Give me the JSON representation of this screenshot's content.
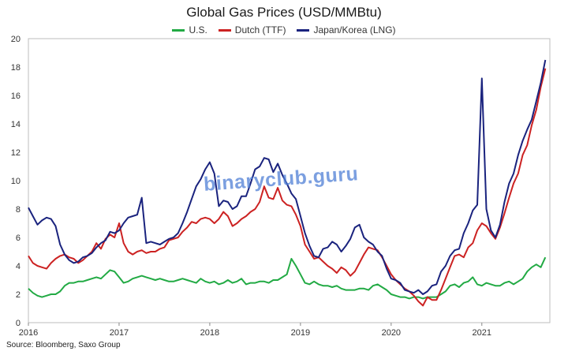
{
  "chart_data": {
    "type": "line",
    "title": "Global Gas Prices (USD/MMBtu)",
    "xlabel": "",
    "ylabel": "",
    "xlim": [
      2016,
      2021.75
    ],
    "ylim": [
      0,
      20
    ],
    "yticks": [
      0,
      2,
      4,
      6,
      8,
      10,
      12,
      14,
      16,
      18,
      20
    ],
    "xticks": [
      2016,
      2017,
      2018,
      2019,
      2020,
      2021
    ],
    "xtick_labels": [
      "2016",
      "2017",
      "2018",
      "2019",
      "2020",
      "2021"
    ],
    "ytick_labels": [
      "0",
      "2",
      "4",
      "6",
      "8",
      "10",
      "12",
      "14",
      "16",
      "18",
      "20"
    ],
    "grid": false,
    "legend_position": "top-center",
    "series": [
      {
        "name": "U.S.",
        "color": "#22aa44",
        "x": [
          2016.0,
          2016.05,
          2016.1,
          2016.15,
          2016.2,
          2016.25,
          2016.3,
          2016.35,
          2016.4,
          2016.45,
          2016.5,
          2016.55,
          2016.6,
          2016.65,
          2016.7,
          2016.75,
          2016.8,
          2016.85,
          2016.9,
          2016.95,
          2017.0,
          2017.05,
          2017.1,
          2017.15,
          2017.2,
          2017.25,
          2017.3,
          2017.35,
          2017.4,
          2017.45,
          2017.5,
          2017.55,
          2017.6,
          2017.65,
          2017.7,
          2017.75,
          2017.8,
          2017.85,
          2017.9,
          2017.95,
          2018.0,
          2018.05,
          2018.1,
          2018.15,
          2018.2,
          2018.25,
          2018.3,
          2018.35,
          2018.4,
          2018.45,
          2018.5,
          2018.55,
          2018.6,
          2018.65,
          2018.7,
          2018.75,
          2018.8,
          2018.85,
          2018.9,
          2018.95,
          2019.0,
          2019.05,
          2019.1,
          2019.15,
          2019.2,
          2019.25,
          2019.3,
          2019.35,
          2019.4,
          2019.45,
          2019.5,
          2019.55,
          2019.6,
          2019.65,
          2019.7,
          2019.75,
          2019.8,
          2019.85,
          2019.9,
          2019.95,
          2020.0,
          2020.05,
          2020.1,
          2020.15,
          2020.2,
          2020.25,
          2020.3,
          2020.35,
          2020.4,
          2020.45,
          2020.5,
          2020.55,
          2020.6,
          2020.65,
          2020.7,
          2020.75,
          2020.8,
          2020.85,
          2020.9,
          2020.95,
          2021.0,
          2021.05,
          2021.1,
          2021.15,
          2021.2,
          2021.25,
          2021.3,
          2021.35,
          2021.4,
          2021.45,
          2021.5,
          2021.55,
          2021.6,
          2021.65,
          2021.7
        ],
        "y": [
          2.4,
          2.1,
          1.9,
          1.8,
          1.9,
          2.0,
          2.0,
          2.2,
          2.6,
          2.8,
          2.8,
          2.9,
          2.9,
          3.0,
          3.1,
          3.2,
          3.1,
          3.4,
          3.7,
          3.6,
          3.2,
          2.8,
          2.9,
          3.1,
          3.2,
          3.3,
          3.2,
          3.1,
          3.0,
          3.1,
          3.0,
          2.9,
          2.9,
          3.0,
          3.1,
          3.0,
          2.9,
          2.8,
          3.1,
          2.9,
          2.8,
          2.9,
          2.7,
          2.8,
          3.0,
          2.8,
          2.9,
          3.1,
          2.7,
          2.8,
          2.8,
          2.9,
          2.9,
          2.8,
          3.0,
          3.0,
          3.2,
          3.4,
          4.5,
          4.0,
          3.4,
          2.8,
          2.7,
          2.9,
          2.7,
          2.6,
          2.6,
          2.5,
          2.6,
          2.4,
          2.3,
          2.3,
          2.3,
          2.4,
          2.4,
          2.3,
          2.6,
          2.7,
          2.5,
          2.3,
          2.0,
          1.9,
          1.8,
          1.8,
          1.7,
          1.8,
          1.8,
          1.7,
          1.8,
          1.8,
          1.8,
          2.0,
          2.2,
          2.6,
          2.7,
          2.5,
          2.8,
          2.9,
          3.2,
          2.7,
          2.6,
          2.8,
          2.7,
          2.6,
          2.6,
          2.8,
          2.9,
          2.7,
          2.9,
          3.1,
          3.6,
          3.9,
          4.1,
          3.9,
          4.6
        ]
      },
      {
        "name": "Dutch (TTF)",
        "color": "#cc2222",
        "x": [
          2016.0,
          2016.05,
          2016.1,
          2016.15,
          2016.2,
          2016.25,
          2016.3,
          2016.35,
          2016.4,
          2016.45,
          2016.5,
          2016.55,
          2016.6,
          2016.65,
          2016.7,
          2016.75,
          2016.8,
          2016.85,
          2016.9,
          2016.95,
          2017.0,
          2017.05,
          2017.1,
          2017.15,
          2017.2,
          2017.25,
          2017.3,
          2017.35,
          2017.4,
          2017.45,
          2017.5,
          2017.55,
          2017.6,
          2017.65,
          2017.7,
          2017.75,
          2017.8,
          2017.85,
          2017.9,
          2017.95,
          2018.0,
          2018.05,
          2018.1,
          2018.15,
          2018.2,
          2018.25,
          2018.3,
          2018.35,
          2018.4,
          2018.45,
          2018.5,
          2018.55,
          2018.6,
          2018.65,
          2018.7,
          2018.75,
          2018.8,
          2018.85,
          2018.9,
          2018.95,
          2019.0,
          2019.05,
          2019.1,
          2019.15,
          2019.2,
          2019.25,
          2019.3,
          2019.35,
          2019.4,
          2019.45,
          2019.5,
          2019.55,
          2019.6,
          2019.65,
          2019.7,
          2019.75,
          2019.8,
          2019.85,
          2019.9,
          2019.95,
          2020.0,
          2020.05,
          2020.1,
          2020.15,
          2020.2,
          2020.25,
          2020.3,
          2020.35,
          2020.4,
          2020.45,
          2020.5,
          2020.55,
          2020.6,
          2020.65,
          2020.7,
          2020.75,
          2020.8,
          2020.85,
          2020.9,
          2020.95,
          2021.0,
          2021.05,
          2021.1,
          2021.15,
          2021.2,
          2021.25,
          2021.3,
          2021.35,
          2021.4,
          2021.45,
          2021.5,
          2021.55,
          2021.6,
          2021.65,
          2021.7
        ],
        "y": [
          4.7,
          4.2,
          4.0,
          3.9,
          3.8,
          4.2,
          4.5,
          4.7,
          4.8,
          4.6,
          4.5,
          4.2,
          4.4,
          4.7,
          5.0,
          5.6,
          5.2,
          5.9,
          6.2,
          6.0,
          7.0,
          5.6,
          5.0,
          4.8,
          5.0,
          5.1,
          4.9,
          5.0,
          5.0,
          5.2,
          5.3,
          5.8,
          5.9,
          6.0,
          6.4,
          6.7,
          7.1,
          7.0,
          7.3,
          7.4,
          7.3,
          7.0,
          7.3,
          7.8,
          7.5,
          6.8,
          7.0,
          7.3,
          7.5,
          7.8,
          8.0,
          8.5,
          9.6,
          8.8,
          8.7,
          9.5,
          8.6,
          8.3,
          8.2,
          7.6,
          6.8,
          5.5,
          5.0,
          4.5,
          4.6,
          4.3,
          4.0,
          3.8,
          3.5,
          3.9,
          3.7,
          3.3,
          3.6,
          4.2,
          4.8,
          5.3,
          5.2,
          5.1,
          4.6,
          4.0,
          3.4,
          3.0,
          2.7,
          2.4,
          2.2,
          1.9,
          1.5,
          1.2,
          1.8,
          1.6,
          1.6,
          2.3,
          3.1,
          3.9,
          4.7,
          4.8,
          4.6,
          5.3,
          5.6,
          6.5,
          7.0,
          6.8,
          6.3,
          5.9,
          6.7,
          7.7,
          8.8,
          9.8,
          10.5,
          11.8,
          12.5,
          13.9,
          15.0,
          16.6,
          17.9
        ]
      },
      {
        "name": "Japan/Korea (LNG)",
        "color": "#1a237e",
        "x": [
          2016.0,
          2016.05,
          2016.1,
          2016.15,
          2016.2,
          2016.25,
          2016.3,
          2016.35,
          2016.4,
          2016.45,
          2016.5,
          2016.55,
          2016.6,
          2016.65,
          2016.7,
          2016.75,
          2016.8,
          2016.85,
          2016.9,
          2016.95,
          2017.0,
          2017.05,
          2017.1,
          2017.15,
          2017.2,
          2017.25,
          2017.3,
          2017.35,
          2017.4,
          2017.45,
          2017.5,
          2017.55,
          2017.6,
          2017.65,
          2017.7,
          2017.75,
          2017.8,
          2017.85,
          2017.9,
          2017.95,
          2018.0,
          2018.05,
          2018.1,
          2018.15,
          2018.2,
          2018.25,
          2018.3,
          2018.35,
          2018.4,
          2018.45,
          2018.5,
          2018.55,
          2018.6,
          2018.65,
          2018.7,
          2018.75,
          2018.8,
          2018.85,
          2018.9,
          2018.95,
          2019.0,
          2019.05,
          2019.1,
          2019.15,
          2019.2,
          2019.25,
          2019.3,
          2019.35,
          2019.4,
          2019.45,
          2019.5,
          2019.55,
          2019.6,
          2019.65,
          2019.7,
          2019.75,
          2019.8,
          2019.85,
          2019.9,
          2019.95,
          2020.0,
          2020.05,
          2020.1,
          2020.15,
          2020.2,
          2020.25,
          2020.3,
          2020.35,
          2020.4,
          2020.45,
          2020.5,
          2020.55,
          2020.6,
          2020.65,
          2020.7,
          2020.75,
          2020.8,
          2020.85,
          2020.9,
          2020.95,
          2021.0,
          2021.05,
          2021.1,
          2021.15,
          2021.2,
          2021.25,
          2021.3,
          2021.35,
          2021.4,
          2021.45,
          2021.5,
          2021.55,
          2021.6,
          2021.65,
          2021.7
        ],
        "y": [
          8.1,
          7.5,
          6.9,
          7.2,
          7.4,
          7.3,
          6.8,
          5.5,
          4.8,
          4.4,
          4.2,
          4.3,
          4.6,
          4.7,
          4.9,
          5.3,
          5.6,
          5.8,
          6.4,
          6.3,
          6.5,
          7.0,
          7.4,
          7.5,
          7.6,
          8.8,
          5.6,
          5.7,
          5.6,
          5.5,
          5.7,
          5.9,
          6.0,
          6.3,
          7.0,
          7.8,
          8.7,
          9.6,
          10.1,
          10.8,
          11.3,
          10.5,
          8.2,
          8.6,
          8.5,
          8.0,
          8.2,
          8.9,
          8.9,
          9.8,
          10.8,
          11.0,
          11.6,
          11.5,
          10.6,
          11.2,
          10.4,
          9.8,
          9.1,
          8.7,
          7.5,
          6.3,
          5.4,
          4.7,
          4.6,
          5.2,
          5.3,
          5.7,
          5.5,
          5.0,
          5.4,
          5.9,
          6.7,
          6.9,
          6.0,
          5.7,
          5.5,
          5.0,
          4.7,
          3.8,
          3.1,
          3.0,
          2.8,
          2.3,
          2.2,
          2.1,
          2.3,
          2.0,
          2.2,
          2.6,
          2.7,
          3.6,
          4.0,
          4.7,
          5.1,
          5.2,
          6.3,
          7.0,
          7.9,
          8.3,
          17.2,
          8.0,
          6.5,
          6.0,
          6.9,
          8.5,
          9.8,
          10.5,
          11.8,
          12.8,
          13.6,
          14.3,
          15.6,
          16.9,
          18.5
        ]
      }
    ]
  },
  "watermark_text": "binaryclub.guru",
  "source_text": "Source: Bloomberg, Saxo Group"
}
